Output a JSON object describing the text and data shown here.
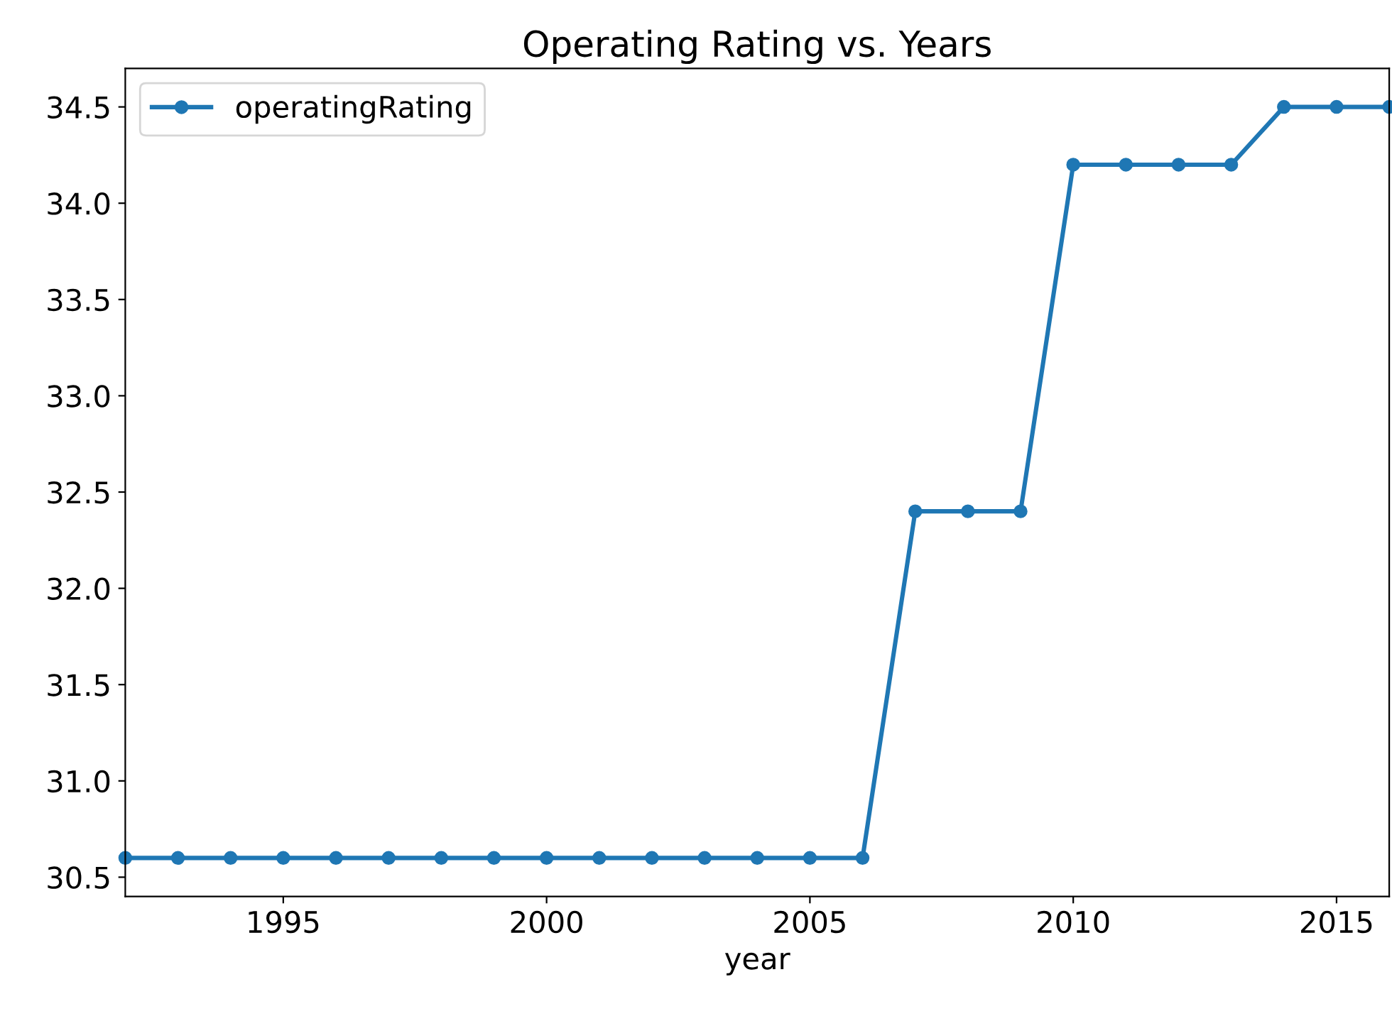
{
  "chart_data": {
    "type": "line",
    "title": "Operating Rating vs. Years",
    "xlabel": "year",
    "x": [
      1992,
      1993,
      1994,
      1995,
      1996,
      1997,
      1998,
      1999,
      2000,
      2001,
      2002,
      2003,
      2004,
      2005,
      2006,
      2007,
      2008,
      2009,
      2010,
      2011,
      2012,
      2013,
      2014,
      2015,
      2016
    ],
    "series": [
      {
        "name": "operatingRating",
        "color": "#1f77b4",
        "values": [
          30.6,
          30.6,
          30.6,
          30.6,
          30.6,
          30.6,
          30.6,
          30.6,
          30.6,
          30.6,
          30.6,
          30.6,
          30.6,
          30.6,
          30.6,
          32.4,
          32.4,
          32.4,
          34.2,
          34.2,
          34.2,
          34.2,
          34.5,
          34.5,
          34.5
        ]
      }
    ],
    "xlim": [
      1992,
      2016
    ],
    "xticks": [
      1995,
      2000,
      2005,
      2010,
      2015
    ],
    "ylim": [
      30.4,
      34.7
    ],
    "yticks": [
      {
        "value": 30.5,
        "label": "30.5"
      },
      {
        "value": 31,
        "label": "31.0"
      },
      {
        "value": 31.5,
        "label": "31.5"
      },
      {
        "value": 32,
        "label": "32.0"
      },
      {
        "value": 32.5,
        "label": "32.5"
      },
      {
        "value": 33,
        "label": "33.0"
      },
      {
        "value": 33.5,
        "label": "33.5"
      },
      {
        "value": 34,
        "label": "34.0"
      },
      {
        "value": 34.5,
        "label": "34.5"
      }
    ],
    "marker": "circle",
    "line_style": "solid",
    "legend": "top left",
    "grid": false
  }
}
